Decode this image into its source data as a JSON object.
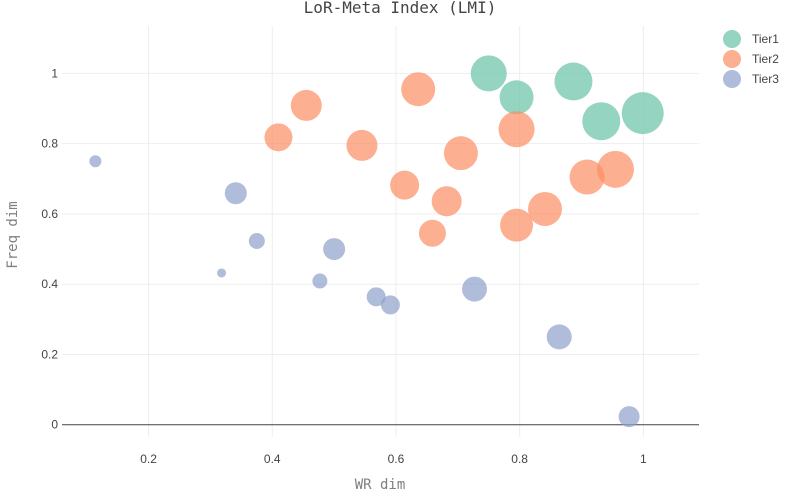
{
  "chart_data": {
    "type": "scatter",
    "title": "LoR-Meta Index (LMI)",
    "xlabel": "WR dim",
    "ylabel": "Freq dim",
    "xlim": [
      0.06,
      1.09
    ],
    "ylim": [
      -0.035,
      1.135
    ],
    "xticks": [
      0.2,
      0.4,
      0.6,
      0.8,
      1
    ],
    "xtick_labels": [
      "0.2",
      "0.4",
      "0.6",
      "0.8",
      "1"
    ],
    "yticks": [
      0,
      0.2,
      0.4,
      0.6,
      0.8,
      1
    ],
    "ytick_labels": [
      "0",
      "0.2",
      "0.4",
      "0.6",
      "0.8",
      "1"
    ],
    "grid": true,
    "legend_position": "top-right",
    "series": [
      {
        "name": "Tier1",
        "color": "#66c2a5",
        "points": [
          {
            "x": 0.75,
            "y": 1.0,
            "size": 36
          },
          {
            "x": 0.795,
            "y": 0.932,
            "size": 34
          },
          {
            "x": 0.887,
            "y": 0.977,
            "size": 38
          },
          {
            "x": 0.932,
            "y": 0.864,
            "size": 38
          },
          {
            "x": 0.999,
            "y": 0.887,
            "size": 42
          }
        ]
      },
      {
        "name": "Tier2",
        "color": "#fc8d62",
        "points": [
          {
            "x": 0.41,
            "y": 0.818,
            "size": 28
          },
          {
            "x": 0.455,
            "y": 0.909,
            "size": 31
          },
          {
            "x": 0.545,
            "y": 0.795,
            "size": 31
          },
          {
            "x": 0.636,
            "y": 0.955,
            "size": 34
          },
          {
            "x": 0.614,
            "y": 0.682,
            "size": 29
          },
          {
            "x": 0.705,
            "y": 0.773,
            "size": 34
          },
          {
            "x": 0.682,
            "y": 0.636,
            "size": 30
          },
          {
            "x": 0.659,
            "y": 0.545,
            "size": 27
          },
          {
            "x": 0.795,
            "y": 0.841,
            "size": 36
          },
          {
            "x": 0.795,
            "y": 0.568,
            "size": 33
          },
          {
            "x": 0.841,
            "y": 0.614,
            "size": 34
          },
          {
            "x": 0.909,
            "y": 0.705,
            "size": 35
          },
          {
            "x": 0.955,
            "y": 0.727,
            "size": 37
          }
        ]
      },
      {
        "name": "Tier3",
        "color": "#8da0cb",
        "points": [
          {
            "x": 0.114,
            "y": 0.75,
            "size": 12
          },
          {
            "x": 0.318,
            "y": 0.432,
            "size": 9
          },
          {
            "x": 0.341,
            "y": 0.659,
            "size": 22
          },
          {
            "x": 0.375,
            "y": 0.523,
            "size": 16
          },
          {
            "x": 0.477,
            "y": 0.409,
            "size": 15
          },
          {
            "x": 0.5,
            "y": 0.5,
            "size": 22
          },
          {
            "x": 0.568,
            "y": 0.364,
            "size": 19
          },
          {
            "x": 0.591,
            "y": 0.341,
            "size": 19
          },
          {
            "x": 0.727,
            "y": 0.386,
            "size": 25
          },
          {
            "x": 0.864,
            "y": 0.25,
            "size": 25
          },
          {
            "x": 0.977,
            "y": 0.023,
            "size": 21
          }
        ]
      }
    ]
  }
}
